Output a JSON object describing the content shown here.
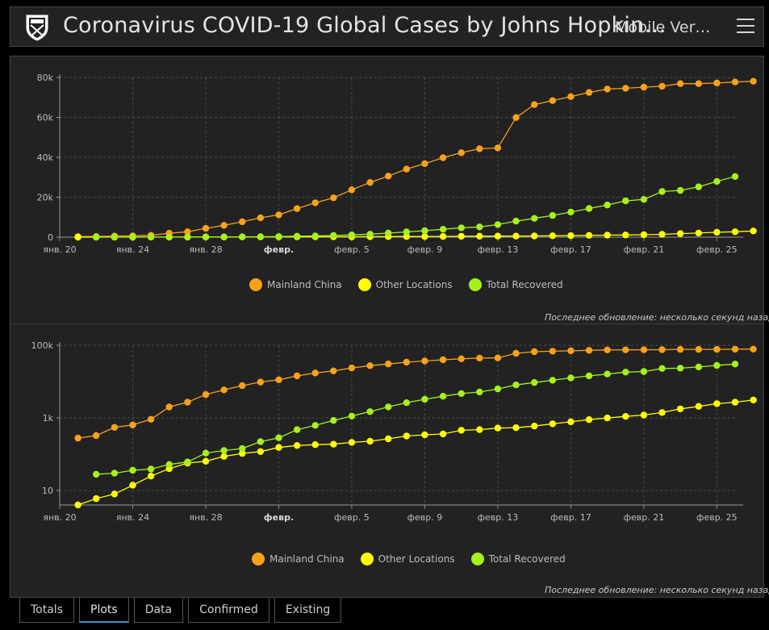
{
  "header": {
    "title": "Coronavirus COVID-19 Global Cases by Johns Hopkin…",
    "mobile_link": "Mobile Ver…",
    "logo_icon": "university-shield-logo",
    "menu_icon": "hamburger-menu-icon"
  },
  "updated_text": "Последнее обновление: несколько секунд назад",
  "legend": [
    {
      "label": "Mainland China",
      "color": "#f7a21b"
    },
    {
      "label": "Other Locations",
      "color": "#ffff00"
    },
    {
      "label": "Total Recovered",
      "color": "#a6f11b"
    }
  ],
  "tabs": [
    {
      "label": "Totals",
      "active": false
    },
    {
      "label": "Plots",
      "active": true
    },
    {
      "label": "Data",
      "active": false
    },
    {
      "label": "Confirmed",
      "active": false
    },
    {
      "label": "Existing",
      "active": false
    }
  ],
  "chart_data": [
    {
      "type": "line",
      "scale": "linear",
      "x_start": "2020-01-20",
      "x_end": "2020-02-26",
      "x_tick_labels": [
        "янв. 20",
        "янв. 24",
        "янв. 28",
        "февр.",
        "февр. 5",
        "февр. 9",
        "февр. 13",
        "февр. 17",
        "февр. 21",
        "февр. 25"
      ],
      "x_tick_dates": [
        "2020-01-20",
        "2020-01-24",
        "2020-01-28",
        "2020-02-01",
        "2020-02-05",
        "2020-02-09",
        "2020-02-13",
        "2020-02-17",
        "2020-02-21",
        "2020-02-25"
      ],
      "y_tick_labels": [
        "0",
        "20k",
        "40k",
        "60k",
        "80k"
      ],
      "y_tick_values": [
        0,
        20000,
        40000,
        60000,
        80000
      ],
      "ylim": [
        0,
        80000
      ],
      "grid": true,
      "legend_position": "bottom-center",
      "series": [
        {
          "name": "Mainland China",
          "color": "#f7a21b",
          "start": "2020-01-21",
          "values": [
            278,
            326,
            547,
            639,
            916,
            2000,
            2700,
            4400,
            5900,
            7700,
            9700,
            11200,
            14300,
            17200,
            19700,
            23700,
            27400,
            30600,
            34100,
            36800,
            39800,
            42300,
            44300,
            44700,
            59900,
            66400,
            68400,
            70400,
            72500,
            74200,
            74600,
            75100,
            75600,
            76900,
            76900,
            77200,
            77700,
            78100
          ]
        },
        {
          "name": "Other Locations",
          "color": "#ffff00",
          "start": "2020-01-21",
          "values": [
            4,
            6,
            8,
            14,
            25,
            40,
            57,
            64,
            87,
            105,
            118,
            153,
            173,
            183,
            188,
            212,
            227,
            265,
            317,
            343,
            361,
            457,
            476,
            523,
            538,
            595,
            685,
            780,
            896,
            999,
            1101,
            1200,
            1402,
            1769,
            2069,
            2459,
            2699,
            3100
          ]
        },
        {
          "name": "Total Recovered",
          "color": "#a6f11b",
          "start": "2020-01-22",
          "values": [
            28,
            30,
            36,
            39,
            52,
            61,
            107,
            126,
            143,
            222,
            284,
            472,
            623,
            852,
            1124,
            1487,
            2011,
            2615,
            3244,
            3946,
            4683,
            5150,
            6295,
            8058,
            9395,
            10865,
            12583,
            14352,
            16121,
            18177,
            18890,
            22886,
            23394,
            25227,
            27905,
            30384
          ]
        }
      ]
    },
    {
      "type": "line",
      "scale": "log",
      "x_start": "2020-01-20",
      "x_end": "2020-02-26",
      "x_tick_labels": [
        "янв. 20",
        "янв. 24",
        "янв. 28",
        "февр.",
        "февр. 5",
        "февр. 9",
        "февр. 13",
        "февр. 17",
        "февр. 21",
        "февр. 25"
      ],
      "x_tick_dates": [
        "2020-01-20",
        "2020-01-24",
        "2020-01-28",
        "2020-02-01",
        "2020-02-05",
        "2020-02-09",
        "2020-02-13",
        "2020-02-17",
        "2020-02-21",
        "2020-02-25"
      ],
      "y_tick_labels": [
        "10",
        "1k",
        "100k"
      ],
      "y_tick_values": [
        10,
        1000,
        100000
      ],
      "ylim": [
        4,
        100000
      ],
      "grid": true,
      "legend_position": "bottom-center",
      "series": [
        {
          "name": "Mainland China",
          "color": "#f7a21b",
          "start": "2020-01-21",
          "values": [
            278,
            326,
            547,
            639,
            916,
            2000,
            2700,
            4400,
            5900,
            7700,
            9700,
            11200,
            14300,
            17200,
            19700,
            23700,
            27400,
            30600,
            34100,
            36800,
            39800,
            42300,
            44300,
            44700,
            59900,
            66400,
            68400,
            70400,
            72500,
            74200,
            74600,
            75100,
            75600,
            76900,
            76900,
            77200,
            77700,
            78100
          ]
        },
        {
          "name": "Other Locations",
          "color": "#ffff00",
          "start": "2020-01-21",
          "values": [
            4,
            6,
            8,
            14,
            25,
            40,
            57,
            64,
            87,
            105,
            118,
            153,
            173,
            183,
            188,
            212,
            227,
            265,
            317,
            343,
            361,
            457,
            476,
            523,
            538,
            595,
            685,
            780,
            896,
            999,
            1101,
            1200,
            1402,
            1769,
            2069,
            2459,
            2699,
            3100
          ]
        },
        {
          "name": "Total Recovered",
          "color": "#a6f11b",
          "start": "2020-01-22",
          "values": [
            28,
            30,
            36,
            39,
            52,
            61,
            107,
            126,
            143,
            222,
            284,
            472,
            623,
            852,
            1124,
            1487,
            2011,
            2615,
            3244,
            3946,
            4683,
            5150,
            6295,
            8058,
            9395,
            10865,
            12583,
            14352,
            16121,
            18177,
            18890,
            22886,
            23394,
            25227,
            27905,
            30384
          ]
        }
      ]
    }
  ]
}
